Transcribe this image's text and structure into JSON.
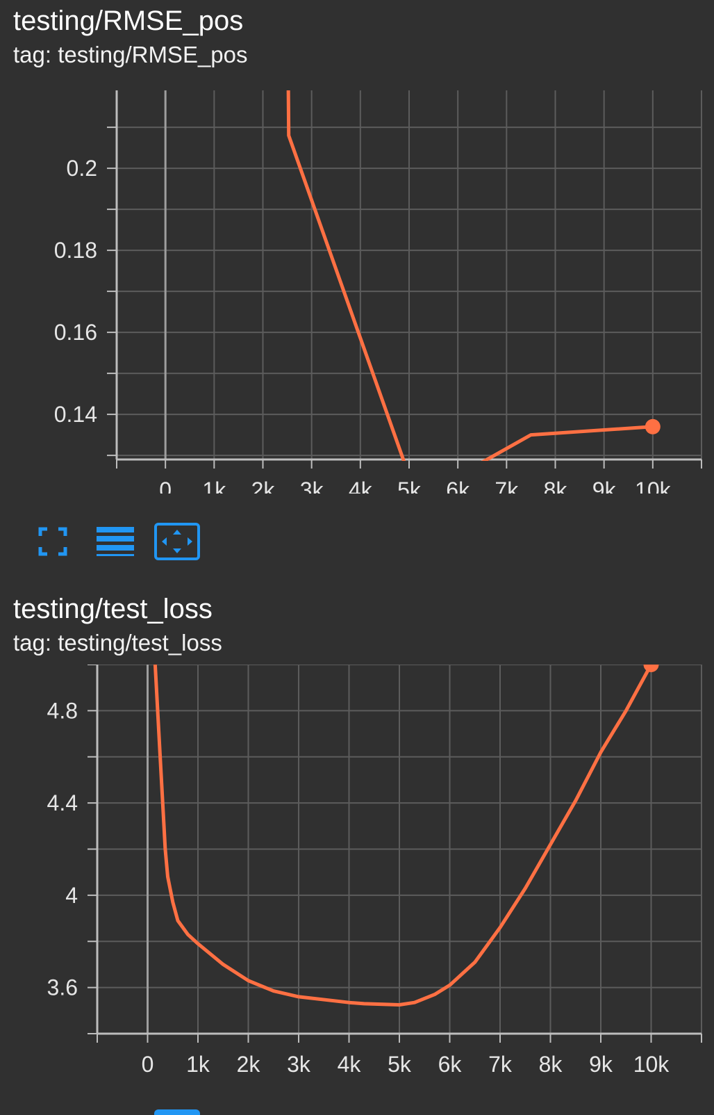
{
  "charts": [
    {
      "title": "testing/RMSE_pos",
      "tag_text": "tag: testing/RMSE_pos"
    },
    {
      "title": "testing/test_loss",
      "tag_text": "tag: testing/test_loss"
    }
  ],
  "toolbar": {
    "buttons": [
      {
        "icon": "fullscreen-icon",
        "active": false
      },
      {
        "icon": "legend-lines-icon",
        "active": false
      },
      {
        "icon": "fit-domain-icon",
        "active": true
      }
    ]
  },
  "colors": {
    "series": "#ff7043",
    "background": "#303030",
    "grid": "#5c5c5c",
    "axis": "#bdbdbd",
    "accent": "#2196f3"
  },
  "chart_data": [
    {
      "type": "line",
      "title": "testing/RMSE_pos",
      "xlabel": "",
      "ylabel": "",
      "x_ticks": [
        "0",
        "1k",
        "2k",
        "3k",
        "4k",
        "5k",
        "6k",
        "7k",
        "8k",
        "9k",
        "10k"
      ],
      "y_ticks": [
        "0.2",
        "0.18",
        "0.16",
        "0.14"
      ],
      "xlim": [
        -1000,
        11000
      ],
      "ylim": [
        0.129,
        0.219
      ],
      "grid": true,
      "series": [
        {
          "x": [
            2500,
            2530,
            5000,
            6000,
            7500,
            10000
          ],
          "y": [
            0.25,
            0.208,
            0.125,
            0.125,
            0.135,
            0.137
          ]
        }
      ]
    },
    {
      "type": "line",
      "title": "testing/test_loss",
      "xlabel": "",
      "ylabel": "",
      "x_ticks": [
        "0",
        "1k",
        "2k",
        "3k",
        "4k",
        "5k",
        "6k",
        "7k",
        "8k",
        "9k",
        "10k"
      ],
      "y_ticks": [
        "4.8",
        "4.4",
        "4",
        "3.6"
      ],
      "xlim": [
        -1000,
        11000
      ],
      "ylim": [
        3.4,
        5.0
      ],
      "grid": true,
      "series": [
        {
          "x": [
            150,
            250,
            350,
            400,
            500,
            600,
            800,
            1000,
            1500,
            2000,
            2500,
            3000,
            4000,
            4300,
            5000,
            5300,
            5700,
            6000,
            6500,
            7000,
            7500,
            8000,
            8500,
            9000,
            9500,
            10000
          ],
          "y": [
            5.0,
            4.6,
            4.2,
            4.08,
            3.97,
            3.89,
            3.83,
            3.79,
            3.7,
            3.63,
            3.585,
            3.56,
            3.535,
            3.53,
            3.525,
            3.535,
            3.57,
            3.61,
            3.71,
            3.86,
            4.03,
            4.22,
            4.41,
            4.62,
            4.8,
            5.0
          ]
        }
      ]
    }
  ]
}
